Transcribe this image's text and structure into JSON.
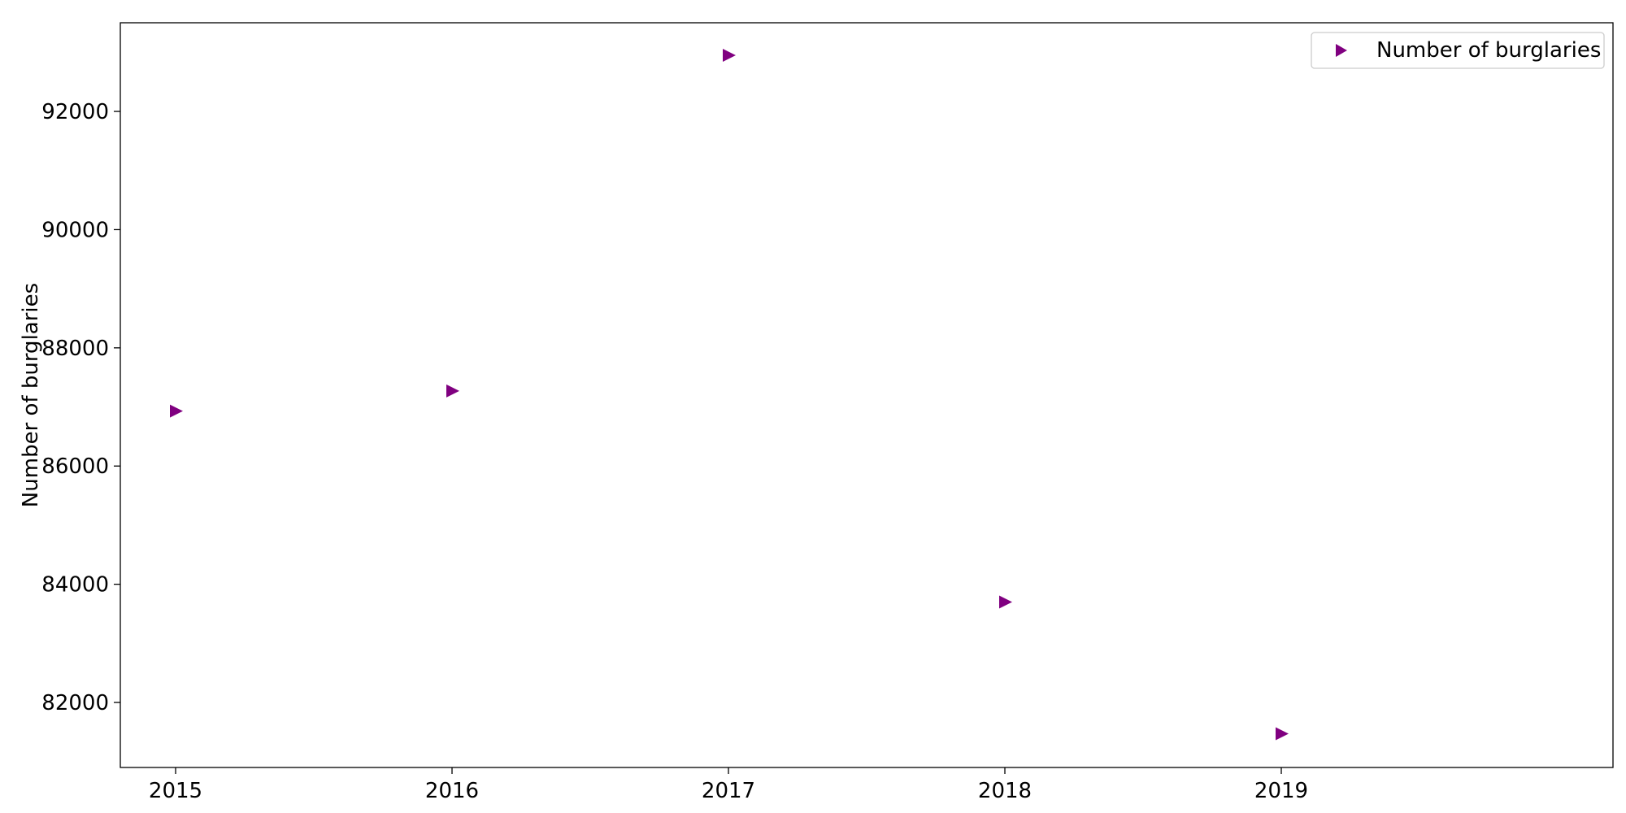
{
  "chart_data": {
    "type": "scatter",
    "title": "",
    "xlabel": "",
    "ylabel": "Number of burglaries",
    "x": [
      2015,
      2016,
      2017,
      2018,
      2019
    ],
    "series": [
      {
        "name": "Number of burglaries",
        "values": [
          86930,
          87270,
          92950,
          83700,
          81470
        ],
        "color": "#800080",
        "marker": "triangle-right"
      }
    ],
    "x_ticks": [
      "2015",
      "2016",
      "2017",
      "2018",
      "2019"
    ],
    "y_ticks": [
      "82000",
      "84000",
      "86000",
      "88000",
      "90000",
      "92000"
    ],
    "xlim": [
      2014.8,
      2020.2
    ],
    "ylim": [
      80900,
      93500
    ],
    "grid": false,
    "legend_position": "upper right"
  }
}
